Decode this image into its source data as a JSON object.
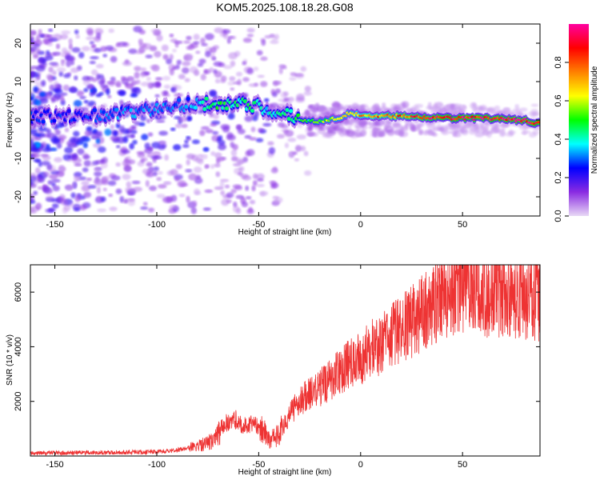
{
  "chart_data": [
    {
      "type": "heatmap",
      "title": "KOM5.2025.108.18.28.G08",
      "xlabel": "Height of straight line (km)",
      "ylabel": "Frequency (Hz)",
      "xlim": [
        -162,
        88
      ],
      "ylim": [
        -25,
        25
      ],
      "x_ticks": [
        -150,
        -100,
        -50,
        0,
        50
      ],
      "y_ticks": [
        -20,
        -10,
        0,
        10,
        20
      ],
      "colorbar": {
        "label": "Normalized spectral amplitude",
        "range": [
          0.0,
          1.0
        ],
        "ticks": [
          0.0,
          0.2,
          0.4,
          0.6,
          0.8
        ],
        "colors": [
          "#e8d8f5",
          "#8a2be2",
          "#0000ff",
          "#00ffff",
          "#00ff00",
          "#ffff00",
          "#ff8000",
          "#ff0000",
          "#ff00a0"
        ]
      },
      "ridge": [
        {
          "x": -160,
          "y": 1,
          "amp": 0.25
        },
        {
          "x": -140,
          "y": 1,
          "amp": 0.25
        },
        {
          "x": -120,
          "y": 1.5,
          "amp": 0.3
        },
        {
          "x": -100,
          "y": 3,
          "amp": 0.3
        },
        {
          "x": -85,
          "y": 4,
          "amp": 0.3
        },
        {
          "x": -70,
          "y": 4.5,
          "amp": 0.45
        },
        {
          "x": -60,
          "y": 4,
          "amp": 0.45
        },
        {
          "x": -50,
          "y": 3.5,
          "amp": 0.4
        },
        {
          "x": -40,
          "y": 2,
          "amp": 0.4
        },
        {
          "x": -30,
          "y": 0,
          "amp": 0.45
        },
        {
          "x": -20,
          "y": -0.5,
          "amp": 0.55
        },
        {
          "x": -10,
          "y": 0.5,
          "amp": 0.6
        },
        {
          "x": -5,
          "y": 2,
          "amp": 0.6
        },
        {
          "x": 0,
          "y": 1,
          "amp": 0.7
        },
        {
          "x": 20,
          "y": 1,
          "amp": 0.8
        },
        {
          "x": 40,
          "y": 0.5,
          "amp": 0.9
        },
        {
          "x": 60,
          "y": 0.5,
          "amp": 0.9
        },
        {
          "x": 80,
          "y": 0,
          "amp": 0.95
        },
        {
          "x": 88,
          "y": -1,
          "amp": 0.9
        }
      ]
    },
    {
      "type": "line",
      "xlabel": "Height of straight line (km)",
      "ylabel": "SNR (10 * v/v)",
      "xlim": [
        -162,
        88
      ],
      "ylim": [
        0,
        7000
      ],
      "x_ticks": [
        -150,
        -100,
        -50,
        0,
        50
      ],
      "y_ticks": [
        2000,
        4000,
        6000
      ],
      "color": "#ee3333",
      "series": [
        {
          "x": [
            -162,
            -140,
            -120,
            -100,
            -90,
            -80,
            -72,
            -68,
            -62,
            -58,
            -52,
            -48,
            -44,
            -40,
            -35,
            -30,
            -25,
            -20,
            -15,
            -10,
            -5,
            0,
            5,
            10,
            20,
            30,
            40,
            50,
            60,
            70,
            80,
            88
          ],
          "y": [
            100,
            120,
            130,
            150,
            220,
            350,
            600,
            1100,
            1400,
            1100,
            1200,
            900,
            600,
            800,
            1500,
            2000,
            2300,
            2500,
            2800,
            3100,
            3400,
            3600,
            3900,
            4100,
            4600,
            5200,
            5900,
            6200,
            6000,
            5900,
            5900,
            5800
          ]
        }
      ]
    }
  ]
}
